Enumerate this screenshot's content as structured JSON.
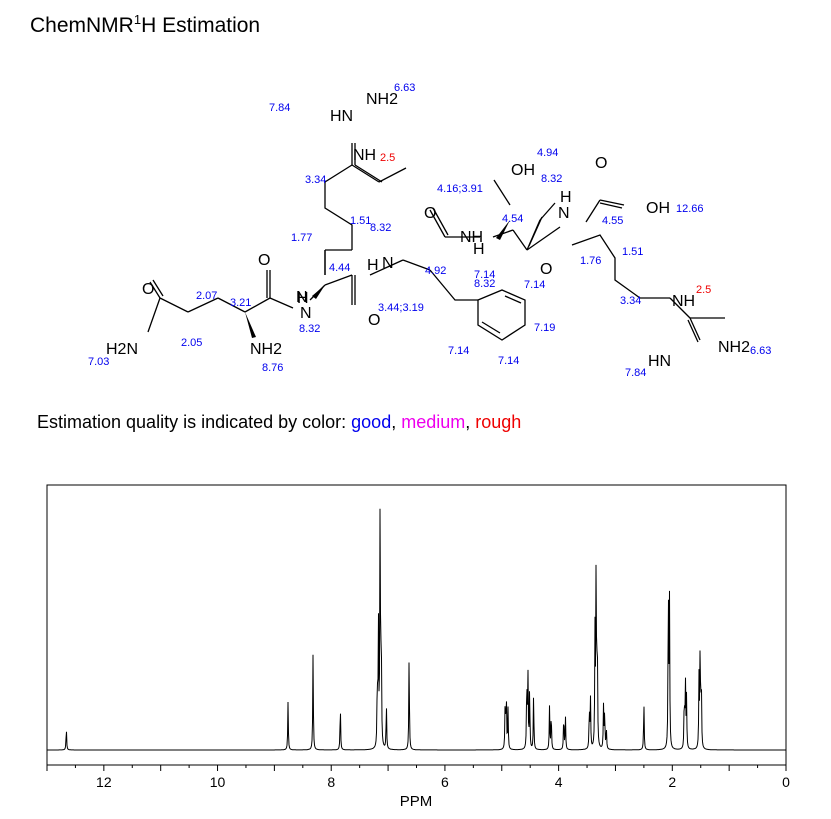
{
  "title": {
    "main": "ChemNMR",
    "sup": "1",
    "rest": "H Estimation"
  },
  "legend": {
    "prefix": "Estimation quality is indicated by color: ",
    "good": "good",
    "medium": "medium",
    "rough": "rough",
    "sep": ", ",
    "colors": {
      "good": "#0000ee",
      "medium": "#ee00ee",
      "rough": "#ee0000"
    }
  },
  "molecule": {
    "atoms": [
      {
        "id": "a1",
        "text": "HN"
      },
      {
        "id": "a2",
        "text": "NH2"
      },
      {
        "id": "a3",
        "text": "NH"
      },
      {
        "id": "a4",
        "text": "OH"
      },
      {
        "id": "a5",
        "text": "O"
      },
      {
        "id": "a6",
        "text": "O"
      },
      {
        "id": "a7",
        "text": "NH"
      },
      {
        "id": "a8",
        "text": "O"
      },
      {
        "id": "a9",
        "text": "H"
      },
      {
        "id": "a10",
        "text": "N"
      },
      {
        "id": "a11",
        "text": "O"
      },
      {
        "id": "a12",
        "text": "OH"
      },
      {
        "id": "a13",
        "text": "H"
      },
      {
        "id": "a14",
        "text": "N"
      },
      {
        "id": "a15",
        "text": "H"
      },
      {
        "id": "a16",
        "text": "N"
      },
      {
        "id": "a17",
        "text": "O"
      },
      {
        "id": "a18",
        "text": "O"
      },
      {
        "id": "a19",
        "text": "N"
      },
      {
        "id": "a20",
        "text": "H"
      },
      {
        "id": "a21",
        "text": "H2N"
      },
      {
        "id": "a22",
        "text": "NH2"
      },
      {
        "id": "a23",
        "text": "NH"
      },
      {
        "id": "a24",
        "text": "NH2"
      },
      {
        "id": "a25",
        "text": "HN"
      }
    ],
    "shifts": [
      {
        "id": "s1",
        "text": "7.84",
        "q": "good"
      },
      {
        "id": "s2",
        "text": "6.63",
        "q": "good"
      },
      {
        "id": "s3",
        "text": "2.5",
        "q": "rough"
      },
      {
        "id": "s4",
        "text": "3.34",
        "q": "good"
      },
      {
        "id": "s5",
        "text": "4.94",
        "q": "good"
      },
      {
        "id": "s6",
        "text": "4.16;3.91",
        "q": "good"
      },
      {
        "id": "s7",
        "text": "8.32",
        "q": "good"
      },
      {
        "id": "s8",
        "text": "1.51",
        "q": "good"
      },
      {
        "id": "s9",
        "text": "8.32",
        "q": "good"
      },
      {
        "id": "s10",
        "text": "4.54",
        "q": "good"
      },
      {
        "id": "s11",
        "text": "12.66",
        "q": "good"
      },
      {
        "id": "s12",
        "text": "1.77",
        "q": "good"
      },
      {
        "id": "s13",
        "text": "4.55",
        "q": "good"
      },
      {
        "id": "s14",
        "text": "4.44",
        "q": "good"
      },
      {
        "id": "s15",
        "text": "4.92",
        "q": "good"
      },
      {
        "id": "s16",
        "text": "7.14",
        "q": "good"
      },
      {
        "id": "s17",
        "text": "8.32",
        "q": "good"
      },
      {
        "id": "s18",
        "text": "1.76",
        "q": "good"
      },
      {
        "id": "s19",
        "text": "1.51",
        "q": "good"
      },
      {
        "id": "s20",
        "text": "7.14",
        "q": "good"
      },
      {
        "id": "s21",
        "text": "2.07",
        "q": "good"
      },
      {
        "id": "s22",
        "text": "3.21",
        "q": "good"
      },
      {
        "id": "s23",
        "text": "3.44;3.19",
        "q": "good"
      },
      {
        "id": "s24",
        "text": "2.5",
        "q": "rough"
      },
      {
        "id": "s25",
        "text": "8.32",
        "q": "good"
      },
      {
        "id": "s26",
        "text": "3.34",
        "q": "good"
      },
      {
        "id": "s27",
        "text": "7.19",
        "q": "good"
      },
      {
        "id": "s28",
        "text": "2.05",
        "q": "good"
      },
      {
        "id": "s29",
        "text": "7.03",
        "q": "good"
      },
      {
        "id": "s30",
        "text": "8.76",
        "q": "good"
      },
      {
        "id": "s31",
        "text": "7.14",
        "q": "good"
      },
      {
        "id": "s32",
        "text": "7.14",
        "q": "good"
      },
      {
        "id": "s33",
        "text": "6.63",
        "q": "good"
      },
      {
        "id": "s34",
        "text": "7.84",
        "q": "good"
      }
    ]
  },
  "chart_data": {
    "type": "line",
    "xlabel": "PPM",
    "xlim": [
      13,
      0
    ],
    "x_reversed": true,
    "x_ticks": [
      12,
      10,
      8,
      6,
      4,
      2,
      0
    ],
    "grid": false,
    "line_color": "#000000",
    "series": [
      {
        "peaks": [
          {
            "ppm": 12.66,
            "h": 0.09
          },
          {
            "ppm": 8.76,
            "h": 0.19
          },
          {
            "ppm": 8.32,
            "h": 0.38
          },
          {
            "ppm": 7.84,
            "h": 0.18
          },
          {
            "ppm": 7.19,
            "h": 0.26
          },
          {
            "ppm": 7.17,
            "h": 0.5
          },
          {
            "ppm": 7.14,
            "h": 1.0
          },
          {
            "ppm": 7.12,
            "h": 0.45
          },
          {
            "ppm": 7.03,
            "h": 0.18
          },
          {
            "ppm": 6.63,
            "h": 0.38
          },
          {
            "ppm": 4.94,
            "h": 0.2
          },
          {
            "ppm": 4.92,
            "h": 0.22
          },
          {
            "ppm": 4.89,
            "h": 0.16
          },
          {
            "ppm": 4.56,
            "h": 0.28
          },
          {
            "ppm": 4.54,
            "h": 0.3
          },
          {
            "ppm": 4.51,
            "h": 0.24
          },
          {
            "ppm": 4.44,
            "h": 0.22
          },
          {
            "ppm": 4.16,
            "h": 0.17
          },
          {
            "ppm": 4.13,
            "h": 0.15
          },
          {
            "ppm": 3.91,
            "h": 0.14
          },
          {
            "ppm": 3.88,
            "h": 0.13
          },
          {
            "ppm": 3.46,
            "h": 0.16
          },
          {
            "ppm": 3.44,
            "h": 0.2
          },
          {
            "ppm": 3.36,
            "h": 0.45
          },
          {
            "ppm": 3.34,
            "h": 0.75
          },
          {
            "ppm": 3.32,
            "h": 0.45
          },
          {
            "ppm": 3.21,
            "h": 0.17
          },
          {
            "ppm": 3.19,
            "h": 0.15
          },
          {
            "ppm": 3.16,
            "h": 0.08
          },
          {
            "ppm": 2.5,
            "h": 0.19
          },
          {
            "ppm": 2.07,
            "h": 0.66
          },
          {
            "ppm": 2.05,
            "h": 0.58
          },
          {
            "ppm": 1.79,
            "h": 0.2
          },
          {
            "ppm": 1.77,
            "h": 0.28
          },
          {
            "ppm": 1.75,
            "h": 0.2
          },
          {
            "ppm": 1.53,
            "h": 0.28
          },
          {
            "ppm": 1.51,
            "h": 0.42
          },
          {
            "ppm": 1.49,
            "h": 0.28
          }
        ]
      }
    ]
  }
}
